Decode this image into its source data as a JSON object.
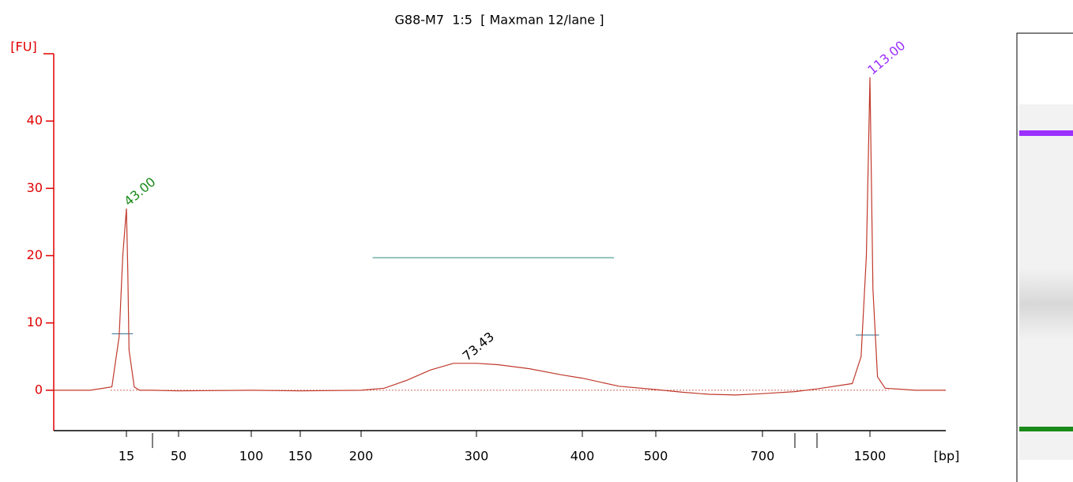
{
  "chart_data": {
    "type": "line",
    "title": "G88-M7  1:5  [ Maxman 12/lane ]",
    "y_label": "[FU]",
    "x_label": "[bp]",
    "ylim": [
      -6,
      50
    ],
    "yticks": [
      0,
      10,
      20,
      30,
      40
    ],
    "xlim": [
      5,
      2000
    ],
    "xticks": [
      15,
      {
        "value": 25,
        "label": null
      },
      50,
      100,
      150,
      200,
      300,
      400,
      500,
      700,
      {
        "value": 1000,
        "label": null
      },
      {
        "value": 1200,
        "label": null
      },
      1500
    ],
    "series": [
      {
        "color": "#c0392b",
        "x": [
          5,
          10,
          13,
          14,
          14.5,
          15,
          15.5,
          16,
          18,
          20,
          25,
          50,
          100,
          150,
          200,
          220,
          240,
          260,
          280,
          300,
          320,
          350,
          380,
          400,
          450,
          500,
          550,
          600,
          650,
          700,
          800,
          1000,
          1200,
          1400,
          1450,
          1480,
          1500,
          1520,
          1550,
          1600,
          1800,
          2000
        ],
        "values": [
          0,
          0,
          0.5,
          8,
          20,
          27,
          18,
          6,
          0.5,
          0,
          0,
          -0.1,
          0,
          -0.1,
          0,
          0.3,
          1.5,
          3,
          4,
          4,
          3.8,
          3.2,
          2.3,
          1.8,
          0.6,
          0.1,
          -0.3,
          -0.6,
          -0.7,
          -0.5,
          -0.4,
          -0.2,
          0.2,
          1,
          5,
          20,
          46.5,
          15,
          2,
          0.3,
          0,
          0
        ]
      }
    ],
    "annotations": [
      {
        "text": "43.00",
        "color": "#1a8a1a",
        "x": 15,
        "y": 27
      },
      {
        "text": "73.43",
        "color": "#000000",
        "x": 290,
        "y": 4
      },
      {
        "text": "113.00",
        "color": "#9b30ff",
        "x": 1500,
        "y": 46.5
      }
    ],
    "markers": [
      {
        "x": [
          210,
          443
        ],
        "y": 19.7,
        "color": "#2e8b7a"
      },
      {
        "x": [
          13,
          17.5
        ],
        "y": 8.4,
        "color": "#2e6b8b"
      },
      {
        "x": [
          1420,
          1560
        ],
        "y": 8.2,
        "color": "#2e6b8b"
      }
    ]
  }
}
